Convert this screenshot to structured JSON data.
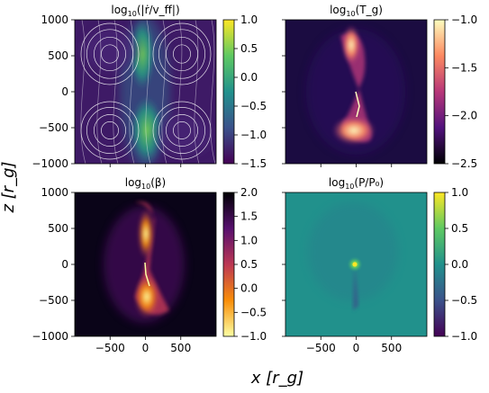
{
  "figure": {
    "xlabel": "x [r_g]",
    "ylabel": "z [r_g]"
  },
  "chart_data": [
    {
      "type": "heatmap",
      "id": "vr",
      "title_pre": "log",
      "title_sub": "10",
      "title_post": "(|ṙ/v_ff|)",
      "xlim": [
        -1000,
        1000
      ],
      "ylim": [
        -1000,
        1000
      ],
      "xticks": [],
      "yticks": [
        1000,
        500,
        0,
        -500,
        -1000
      ],
      "colormap": "viridis",
      "overlay": "streamlines",
      "colorbar": {
        "range": [
          -1.5,
          1.0
        ],
        "ticks": [
          "1.0",
          "0.5",
          "0.0",
          "−0.5",
          "−1.0",
          "−1.5"
        ]
      }
    },
    {
      "type": "heatmap",
      "id": "tg",
      "title_pre": "log",
      "title_sub": "10",
      "title_post": "(T_g)",
      "xlim": [
        -1000,
        1000
      ],
      "ylim": [
        -1000,
        1000
      ],
      "xticks": [],
      "yticks": [],
      "colormap": "magma",
      "colorbar": {
        "range": [
          -2.5,
          -1.0
        ],
        "ticks": [
          "−1.0",
          "−1.5",
          "−2.0",
          "−2.5"
        ]
      }
    },
    {
      "type": "heatmap",
      "id": "beta",
      "title_pre": "log",
      "title_sub": "10",
      "title_post": "(β)",
      "xlim": [
        -1000,
        1000
      ],
      "ylim": [
        -1000,
        1000
      ],
      "xticks": [
        "−500",
        "0",
        "500"
      ],
      "yticks": [
        1000,
        500,
        0,
        -500,
        -1000
      ],
      "colormap": "inferno_r",
      "colorbar": {
        "range": [
          -1.0,
          2.0
        ],
        "ticks": [
          "2.0",
          "1.5",
          "1.0",
          "0.5",
          "0.0",
          "−0.5",
          "−1.0"
        ]
      }
    },
    {
      "type": "heatmap",
      "id": "press",
      "title_pre": "log",
      "title_sub": "10",
      "title_post": "(P/P₀)",
      "xlim": [
        -1000,
        1000
      ],
      "ylim": [
        -1000,
        1000
      ],
      "xticks": [
        "−500",
        "0",
        "500"
      ],
      "yticks": [],
      "colormap": "viridis",
      "colorbar": {
        "range": [
          -1.0,
          1.0
        ],
        "ticks": [
          "1.0",
          "0.5",
          "0.0",
          "−0.5",
          "−1.0"
        ]
      }
    }
  ]
}
